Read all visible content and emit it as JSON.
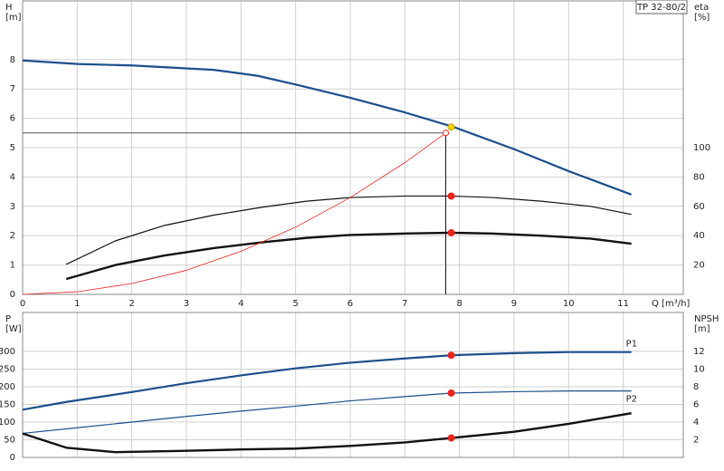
{
  "chart_data": [
    {
      "type": "line",
      "title": "TP 32-80/2",
      "ylabel": "H",
      "yunit": "[m]",
      "y2label": "eta",
      "y2unit": "[%]",
      "xlabel": "Q [m³/h]",
      "xlim": [
        0,
        12.1
      ],
      "xticks": [
        0,
        1,
        2,
        3,
        4,
        5,
        6,
        7,
        8,
        9,
        10,
        11
      ],
      "ylim": [
        0,
        10
      ],
      "yticks": [
        0,
        1,
        2,
        3,
        4,
        5,
        6,
        7,
        8
      ],
      "y2lim": [
        0,
        200
      ],
      "y2ticks": [
        20,
        40,
        60,
        80,
        100
      ],
      "grid": true,
      "series": [
        {
          "color": "#1c4f8c",
          "linewidth": 2.2,
          "x": [
            0,
            1,
            2,
            2.5,
            3.5,
            4.3,
            5,
            6,
            7,
            7.9,
            9,
            10,
            11.15
          ],
          "values": [
            7.97,
            7.85,
            7.8,
            7.75,
            7.65,
            7.45,
            7.15,
            6.7,
            6.2,
            5.7,
            4.95,
            4.2,
            3.4
          ],
          "marker": {
            "x": 7.85,
            "y": 5.7,
            "color": "#f5d800"
          }
        },
        {
          "color": "#111111",
          "linewidth": 1.2,
          "axis": "y2",
          "x": [
            0.8,
            1.7,
            2.6,
            3.5,
            4.4,
            5.2,
            6,
            7,
            7.85,
            8.6,
            9.5,
            10.4,
            11.15
          ],
          "values": [
            20.5,
            36.5,
            47,
            54,
            59.5,
            63.5,
            66,
            67,
            67,
            66,
            63.5,
            60,
            54.5
          ],
          "marker": {
            "x": 7.85,
            "y": 67,
            "color": "#e8251f"
          }
        },
        {
          "color": "#111111",
          "linewidth": 2.4,
          "axis": "y2",
          "x": [
            0.8,
            1.7,
            2.6,
            3.5,
            4.4,
            5.2,
            6,
            7,
            7.85,
            8.6,
            9.5,
            10.4,
            11.15
          ],
          "values": [
            10.5,
            20,
            26.5,
            31.5,
            35.5,
            38.5,
            40.5,
            41.5,
            42,
            41.5,
            40,
            38,
            34.5
          ],
          "marker": {
            "x": 7.85,
            "y": 42,
            "color": "#e8251f"
          }
        },
        {
          "color": "#e8251f",
          "linewidth": 0.8,
          "x": [
            0,
            1,
            2,
            3,
            4,
            5,
            6,
            7,
            7.75
          ],
          "values": [
            0,
            0.09,
            0.37,
            0.82,
            1.47,
            2.29,
            3.3,
            4.49,
            5.5
          ],
          "marker": {
            "x": 7.75,
            "y": 5.5,
            "color": "#e8251f",
            "open": true,
            "guides": true
          }
        }
      ]
    },
    {
      "type": "line",
      "ylabel": "P",
      "yunit": "[W]",
      "y2label": "NPSH",
      "y2unit": "[m]",
      "xlim": [
        0,
        12.1
      ],
      "ylim": [
        0,
        410
      ],
      "yticks": [
        0,
        50,
        100,
        150,
        200,
        250,
        300
      ],
      "y2lim": [
        0,
        16.4
      ],
      "y2ticks": [
        2,
        4,
        6,
        8,
        10,
        12
      ],
      "grid": true,
      "series": [
        {
          "name": "P1",
          "color": "#1c4f8c",
          "linewidth": 2.2,
          "x": [
            0,
            0.8,
            2,
            3,
            4,
            5,
            6,
            7,
            7.85,
            9,
            10,
            11.15
          ],
          "values": [
            135,
            157,
            185,
            210,
            232,
            252,
            268,
            280,
            289,
            295,
            298,
            298
          ],
          "marker": {
            "x": 7.85,
            "y": 289,
            "color": "#e8251f"
          }
        },
        {
          "name": "P2",
          "color": "#1c4f8c",
          "linewidth": 1.2,
          "x": [
            0,
            1,
            2,
            3,
            4,
            5,
            6,
            7,
            7.85,
            9,
            10,
            11.15
          ],
          "values": [
            68,
            84,
            100,
            116,
            131,
            145,
            160,
            172,
            182,
            186,
            188,
            188
          ],
          "marker": {
            "x": 7.85,
            "y": 182,
            "color": "#e8251f"
          }
        },
        {
          "color": "#111111",
          "linewidth": 2.4,
          "axis": "y2",
          "x": [
            0,
            0.8,
            1.7,
            3,
            4,
            5,
            6,
            7,
            7.85,
            9,
            10,
            11.15
          ],
          "values": [
            2.7,
            1.1,
            0.6,
            0.75,
            0.9,
            1.0,
            1.3,
            1.7,
            2.2,
            2.9,
            3.8,
            5.0
          ],
          "marker": {
            "x": 7.85,
            "y": 2.2,
            "color": "#e8251f"
          }
        }
      ]
    }
  ]
}
